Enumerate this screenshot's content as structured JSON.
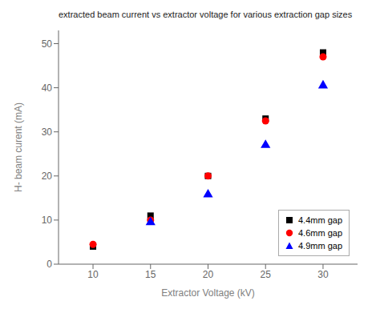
{
  "chart_data": {
    "type": "scatter",
    "title": "extracted beam current vs extractor voltage for various extraction gap sizes",
    "x_label": "Extractor Voltage (kV)",
    "y_label": "H- beam curent (mA)",
    "xlim": [
      7,
      33
    ],
    "ylim": [
      0,
      53
    ],
    "xticks": [
      10,
      15,
      20,
      25,
      30
    ],
    "yticks": [
      0,
      10,
      20,
      30,
      40,
      50
    ],
    "series": [
      {
        "name": "4.4mm gap",
        "color": "black",
        "marker": "square",
        "x": [
          10,
          15,
          20,
          25,
          30
        ],
        "values": [
          4.0,
          11.0,
          20.0,
          33.0,
          48.0
        ]
      },
      {
        "name": "4.6mm gap",
        "color": "red",
        "marker": "circle",
        "x": [
          10,
          15,
          20,
          25,
          30
        ],
        "values": [
          4.5,
          10.0,
          20.0,
          32.5,
          47.0
        ]
      },
      {
        "name": "4.9mm gap",
        "color": "blue",
        "marker": "triangle",
        "x": [
          15,
          20,
          25,
          30
        ],
        "values": [
          9.5,
          15.8,
          27.0,
          40.5
        ]
      }
    ],
    "legend": "lower right",
    "grid": false
  }
}
